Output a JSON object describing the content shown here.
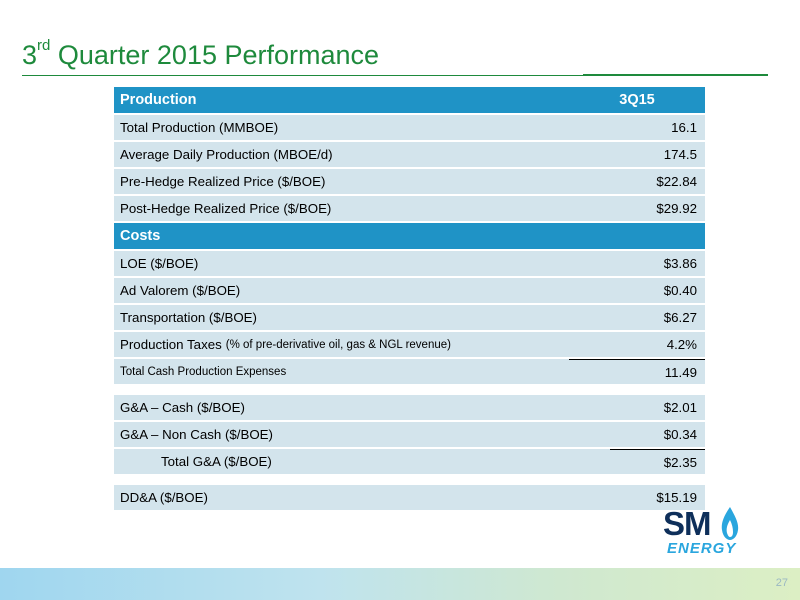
{
  "title": {
    "prefix": "3",
    "sup": "rd",
    "rest": " Quarter 2015 Performance"
  },
  "table": {
    "production_header": "Production",
    "period_header": "3Q15",
    "production_rows": [
      {
        "label": "Total Production (MMBOE)",
        "value": "16.1"
      },
      {
        "label": "Average Daily Production (MBOE/d)",
        "value": "174.5"
      },
      {
        "label": "Pre-Hedge Realized Price ($/BOE)",
        "value": "$22.84"
      },
      {
        "label": "Post-Hedge Realized Price ($/BOE)",
        "value": "$29.92"
      }
    ],
    "costs_header": "Costs",
    "costs_rows": [
      {
        "label": "LOE ($/BOE)",
        "value": "$3.86"
      },
      {
        "label": "Ad Valorem ($/BOE)",
        "value": "$0.40"
      },
      {
        "label": "Transportation ($/BOE)",
        "value": "$6.27"
      },
      {
        "label": "Production Taxes",
        "note": "(% of pre-derivative oil, gas & NGL revenue)",
        "value": "4.2%"
      },
      {
        "label": "Total Cash Production Expenses",
        "value": "11.49"
      }
    ],
    "ga_rows": [
      {
        "label": "G&A – Cash ($/BOE)",
        "value": "$2.01"
      },
      {
        "label": "G&A – Non Cash ($/BOE)",
        "value": "$0.34"
      },
      {
        "label": "Total G&A ($/BOE)",
        "value": "$2.35"
      }
    ],
    "dda_row": {
      "label": "DD&A ($/BOE)",
      "value": "$15.19"
    }
  },
  "logo": {
    "name": "SM",
    "sub": "ENERGY",
    "icon": "flame-icon"
  },
  "page_number": "27",
  "colors": {
    "title_green": "#1e8a3c",
    "header_blue": "#1f93c6",
    "row_fill": "#d3e4ec",
    "logo_navy": "#0e2f5a",
    "logo_blue": "#2aa6de"
  }
}
